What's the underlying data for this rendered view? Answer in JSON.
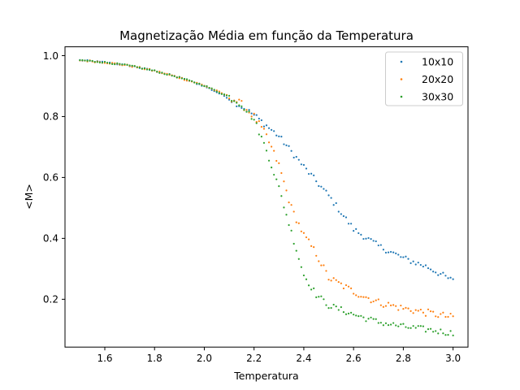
{
  "chart_data": {
    "type": "scatter",
    "title": "Magnetização Média em função da Temperatura",
    "xlabel": "Temperatura",
    "ylabel": "<M>",
    "xlim": [
      1.44,
      3.06
    ],
    "ylim": [
      0.043,
      1.029
    ],
    "xticks": [
      "1.6",
      "1.8",
      "2.0",
      "2.2",
      "2.4",
      "2.6",
      "2.8",
      "3.0"
    ],
    "yticks": [
      "0.2",
      "0.4",
      "0.6",
      "0.8",
      "1.0"
    ],
    "grid": false,
    "legend_position": "top-right",
    "series": [
      {
        "name": "10x10",
        "color": "#1f77b4",
        "anchors": [
          [
            1.5,
            0.985
          ],
          [
            1.6,
            0.978
          ],
          [
            1.7,
            0.967
          ],
          [
            1.8,
            0.95
          ],
          [
            1.9,
            0.928
          ],
          [
            2.0,
            0.9
          ],
          [
            2.1,
            0.86
          ],
          [
            2.2,
            0.805
          ],
          [
            2.3,
            0.735
          ],
          [
            2.4,
            0.635
          ],
          [
            2.5,
            0.54
          ],
          [
            2.6,
            0.43
          ],
          [
            2.7,
            0.375
          ],
          [
            2.8,
            0.335
          ],
          [
            2.9,
            0.305
          ],
          [
            3.0,
            0.26
          ]
        ],
        "noise": 0.01
      },
      {
        "name": "20x20",
        "color": "#ff7f0e",
        "anchors": [
          [
            1.5,
            0.985
          ],
          [
            1.6,
            0.978
          ],
          [
            1.7,
            0.967
          ],
          [
            1.8,
            0.95
          ],
          [
            1.9,
            0.928
          ],
          [
            2.0,
            0.902
          ],
          [
            2.1,
            0.865
          ],
          [
            2.15,
            0.84
          ],
          [
            2.2,
            0.8
          ],
          [
            2.25,
            0.735
          ],
          [
            2.3,
            0.64
          ],
          [
            2.35,
            0.5
          ],
          [
            2.4,
            0.41
          ],
          [
            2.45,
            0.35
          ],
          [
            2.5,
            0.27
          ],
          [
            2.6,
            0.225
          ],
          [
            2.7,
            0.19
          ],
          [
            2.8,
            0.17
          ],
          [
            2.9,
            0.155
          ],
          [
            3.0,
            0.14
          ]
        ],
        "noise": 0.012
      },
      {
        "name": "30x30",
        "color": "#2ca02c",
        "anchors": [
          [
            1.5,
            0.985
          ],
          [
            1.6,
            0.978
          ],
          [
            1.7,
            0.967
          ],
          [
            1.8,
            0.95
          ],
          [
            1.9,
            0.928
          ],
          [
            2.0,
            0.902
          ],
          [
            2.1,
            0.865
          ],
          [
            2.15,
            0.84
          ],
          [
            2.2,
            0.79
          ],
          [
            2.25,
            0.69
          ],
          [
            2.3,
            0.565
          ],
          [
            2.35,
            0.42
          ],
          [
            2.4,
            0.28
          ],
          [
            2.45,
            0.215
          ],
          [
            2.5,
            0.18
          ],
          [
            2.6,
            0.15
          ],
          [
            2.7,
            0.125
          ],
          [
            2.8,
            0.11
          ],
          [
            2.9,
            0.1
          ],
          [
            3.0,
            0.088
          ]
        ],
        "noise": 0.01
      }
    ],
    "x_start": 1.5,
    "x_end": 3.0,
    "points_per_series": 151
  }
}
